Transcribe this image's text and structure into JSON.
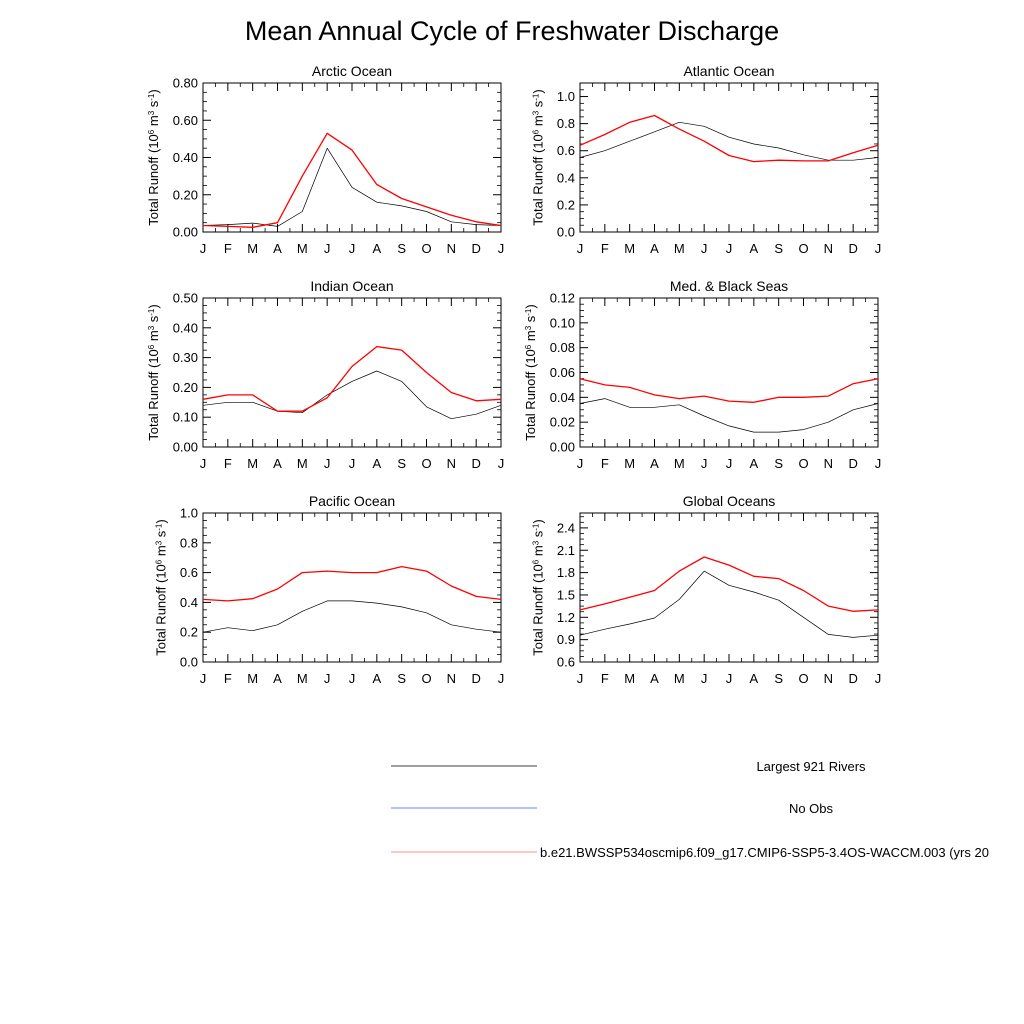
{
  "title": "Mean Annual Cycle of Freshwater Discharge",
  "months": [
    "J",
    "F",
    "M",
    "A",
    "M",
    "J",
    "J",
    "A",
    "S",
    "O",
    "N",
    "D",
    "J"
  ],
  "ylabel": {
    "main": "Total Runoff (10",
    "exp1": "6",
    "mid1": " m",
    "exp2": "3",
    "mid2": " s",
    "exp3": "-1",
    "end": ")"
  },
  "colors": {
    "obs": "#000000",
    "noobs": "#6f7fff",
    "model": "#ff0000"
  },
  "legend": {
    "entries": [
      {
        "label": "Largest 921 Rivers",
        "color": "#000000"
      },
      {
        "label": "No Obs",
        "color": "#6f7fff"
      },
      {
        "label": "b.e21.BWSSP534oscmip6.f09_g17.CMIP6-SSP5-3.4OS-WACCM.003 (yrs 20",
        "color": "#ff0000"
      }
    ]
  },
  "chart_data": [
    {
      "type": "line",
      "title": "Arctic Ocean",
      "ylim": [
        0.0,
        0.8
      ],
      "yticks": [
        "0.00",
        "0.20",
        "0.40",
        "0.60",
        "0.80"
      ],
      "series": [
        {
          "name": "Largest 921 Rivers",
          "values": [
            0.035,
            0.04,
            0.048,
            0.03,
            0.11,
            0.45,
            0.24,
            0.16,
            0.14,
            0.11,
            0.055,
            0.04,
            0.035
          ]
        },
        {
          "name": "b.e21.BWSSP534oscmip6.f09_g17.CMIP6-SSP5-3.4OS-WACCM.003 (yrs 20",
          "values": [
            0.035,
            0.03,
            0.025,
            0.05,
            0.3,
            0.53,
            0.44,
            0.255,
            0.18,
            0.135,
            0.09,
            0.055,
            0.035
          ]
        }
      ]
    },
    {
      "type": "line",
      "title": "Atlantic Ocean",
      "ylim": [
        0.0,
        1.1
      ],
      "yticks": [
        "0.0",
        "0.2",
        "0.4",
        "0.6",
        "0.8",
        "1.0"
      ],
      "series": [
        {
          "name": "Largest 921 Rivers",
          "values": [
            0.55,
            0.6,
            0.67,
            0.74,
            0.81,
            0.78,
            0.7,
            0.65,
            0.62,
            0.57,
            0.53,
            0.53,
            0.55
          ]
        },
        {
          "name": "b.e21.BWSSP534oscmip6.f09_g17.CMIP6-SSP5-3.4OS-WACCM.003 (yrs 20",
          "values": [
            0.64,
            0.72,
            0.81,
            0.86,
            0.76,
            0.67,
            0.565,
            0.52,
            0.53,
            0.525,
            0.525,
            0.585,
            0.64
          ]
        }
      ]
    },
    {
      "type": "line",
      "title": "Indian Ocean",
      "ylim": [
        0.0,
        0.5
      ],
      "yticks": [
        "0.00",
        "0.10",
        "0.20",
        "0.30",
        "0.40",
        "0.50"
      ],
      "series": [
        {
          "name": "Largest 921 Rivers",
          "values": [
            0.14,
            0.15,
            0.15,
            0.12,
            0.115,
            0.175,
            0.22,
            0.255,
            0.22,
            0.135,
            0.095,
            0.11,
            0.14
          ]
        },
        {
          "name": "b.e21.BWSSP534oscmip6.f09_g17.CMIP6-SSP5-3.4OS-WACCM.003 (yrs 20",
          "values": [
            0.16,
            0.175,
            0.175,
            0.12,
            0.12,
            0.165,
            0.27,
            0.337,
            0.325,
            0.25,
            0.183,
            0.155,
            0.16
          ]
        }
      ]
    },
    {
      "type": "line",
      "title": "Med. & Black Seas",
      "ylim": [
        0.0,
        0.12
      ],
      "yticks": [
        "0.00",
        "0.02",
        "0.04",
        "0.06",
        "0.08",
        "0.10",
        "0.12"
      ],
      "series": [
        {
          "name": "Largest 921 Rivers",
          "values": [
            0.035,
            0.039,
            0.032,
            0.032,
            0.034,
            0.025,
            0.017,
            0.012,
            0.012,
            0.014,
            0.02,
            0.03,
            0.035
          ]
        },
        {
          "name": "b.e21.BWSSP534oscmip6.f09_g17.CMIP6-SSP5-3.4OS-WACCM.003 (yrs 20",
          "values": [
            0.055,
            0.05,
            0.048,
            0.042,
            0.039,
            0.041,
            0.037,
            0.036,
            0.04,
            0.04,
            0.041,
            0.051,
            0.055
          ]
        }
      ]
    },
    {
      "type": "line",
      "title": "Pacific Ocean",
      "ylim": [
        0.0,
        1.0
      ],
      "yticks": [
        "0.0",
        "0.2",
        "0.4",
        "0.6",
        "0.8",
        "1.0"
      ],
      "series": [
        {
          "name": "Largest 921 Rivers",
          "values": [
            0.2,
            0.23,
            0.21,
            0.25,
            0.34,
            0.41,
            0.41,
            0.395,
            0.37,
            0.33,
            0.25,
            0.22,
            0.2
          ]
        },
        {
          "name": "b.e21.BWSSP534oscmip6.f09_g17.CMIP6-SSP5-3.4OS-WACCM.003 (yrs 20",
          "values": [
            0.42,
            0.41,
            0.425,
            0.49,
            0.6,
            0.61,
            0.6,
            0.6,
            0.64,
            0.61,
            0.51,
            0.44,
            0.42
          ]
        }
      ]
    },
    {
      "type": "line",
      "title": "Global Oceans",
      "ylim": [
        0.6,
        2.6
      ],
      "yticks": [
        "0.6",
        "0.9",
        "1.2",
        "1.5",
        "1.8",
        "2.1",
        "2.4"
      ],
      "series": [
        {
          "name": "Largest 921 Rivers",
          "values": [
            0.96,
            1.04,
            1.11,
            1.19,
            1.44,
            1.82,
            1.63,
            1.54,
            1.43,
            1.2,
            0.97,
            0.93,
            0.96
          ]
        },
        {
          "name": "b.e21.BWSSP534oscmip6.f09_g17.CMIP6-SSP5-3.4OS-WACCM.003 (yrs 20",
          "values": [
            1.3,
            1.38,
            1.47,
            1.56,
            1.82,
            2.01,
            1.9,
            1.75,
            1.72,
            1.56,
            1.35,
            1.28,
            1.3
          ]
        }
      ]
    }
  ]
}
